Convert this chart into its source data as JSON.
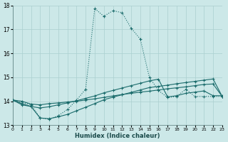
{
  "xlabel": "Humidex (Indice chaleur)",
  "bg_color": "#cce8e8",
  "grid_color": "#aacfcf",
  "line_color": "#1a6b6b",
  "xlim": [
    0,
    23
  ],
  "ylim": [
    13,
    18
  ],
  "yticks": [
    13,
    14,
    15,
    16,
    17,
    18
  ],
  "xticks": [
    0,
    1,
    2,
    3,
    4,
    5,
    6,
    7,
    8,
    9,
    10,
    11,
    12,
    13,
    14,
    15,
    16,
    17,
    18,
    19,
    20,
    21,
    22,
    23
  ],
  "series": [
    {
      "x": [
        0,
        2,
        3,
        4,
        5,
        6,
        7,
        8,
        9,
        10,
        11,
        12,
        13,
        14,
        15,
        16,
        17,
        18,
        19,
        20,
        21,
        22,
        23
      ],
      "y": [
        14.05,
        13.85,
        13.3,
        13.25,
        13.4,
        13.65,
        14.05,
        14.5,
        17.87,
        17.55,
        17.78,
        17.7,
        17.05,
        16.6,
        15.0,
        14.45,
        14.15,
        14.2,
        14.5,
        14.2,
        14.2,
        14.2,
        14.2
      ],
      "style": "dotted"
    },
    {
      "x": [
        0,
        1,
        2,
        3,
        4,
        5,
        6,
        7,
        8,
        9,
        10,
        11,
        12,
        13,
        14,
        15,
        16,
        17,
        18,
        19,
        20,
        21,
        22,
        23
      ],
      "y": [
        14.05,
        14.0,
        13.88,
        13.85,
        13.9,
        13.93,
        13.97,
        14.0,
        14.05,
        14.1,
        14.16,
        14.22,
        14.28,
        14.33,
        14.38,
        14.42,
        14.47,
        14.52,
        14.56,
        14.6,
        14.65,
        14.7,
        14.72,
        14.2
      ],
      "style": "solid"
    },
    {
      "x": [
        0,
        1,
        2,
        3,
        4,
        5,
        6,
        7,
        8,
        9,
        10,
        11,
        12,
        13,
        14,
        15,
        16,
        17,
        18,
        19,
        20,
        21,
        22,
        23
      ],
      "y": [
        14.05,
        13.9,
        13.78,
        13.72,
        13.77,
        13.85,
        13.93,
        14.02,
        14.12,
        14.22,
        14.35,
        14.45,
        14.55,
        14.65,
        14.75,
        14.85,
        14.92,
        14.18,
        14.23,
        14.33,
        14.38,
        14.43,
        14.23,
        14.23
      ],
      "style": "solid"
    },
    {
      "x": [
        0,
        1,
        2,
        3,
        4,
        5,
        6,
        7,
        8,
        9,
        10,
        11,
        12,
        13,
        14,
        15,
        16,
        17,
        18,
        19,
        20,
        21,
        22,
        23
      ],
      "y": [
        14.05,
        13.85,
        13.78,
        13.3,
        13.27,
        13.35,
        13.45,
        13.6,
        13.75,
        13.9,
        14.06,
        14.17,
        14.27,
        14.37,
        14.47,
        14.57,
        14.62,
        14.67,
        14.73,
        14.78,
        14.83,
        14.88,
        14.93,
        14.2
      ],
      "style": "solid"
    }
  ]
}
